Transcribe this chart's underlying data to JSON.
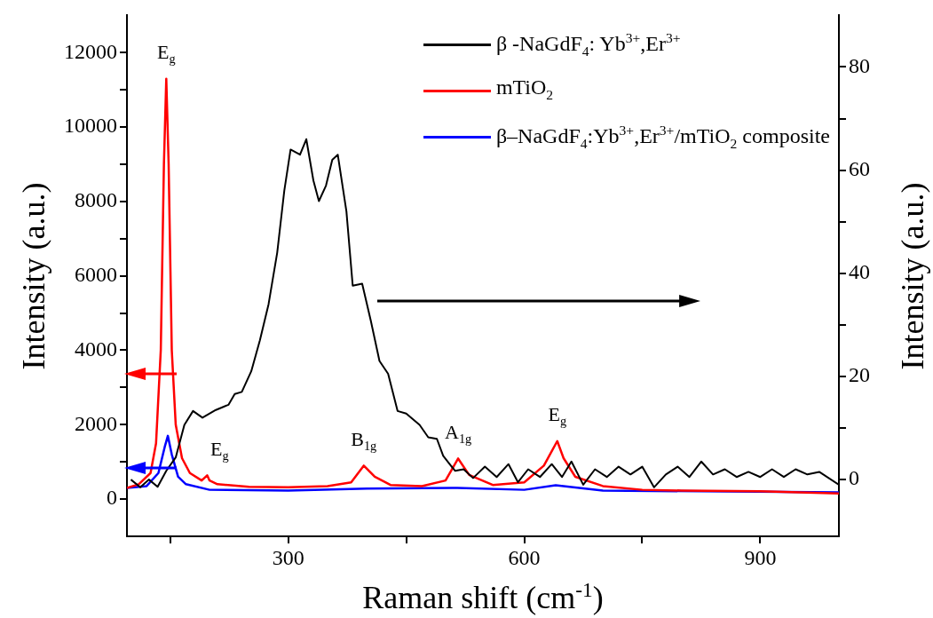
{
  "chart_data": {
    "type": "line",
    "xlabel": "Raman shift (cm$^{-1}$)",
    "ylabel": "Intensity (a.u.)",
    "y2label": "Intensity (a.u.)",
    "xlim": [
      95,
      1000
    ],
    "xticks": [
      {
        "value": 150,
        "label": null
      },
      300,
      {
        "value": 450,
        "label": null
      },
      600,
      {
        "value": 750,
        "label": null
      },
      900
    ],
    "ylim": [
      -1000,
      13000
    ],
    "yticks": [
      0,
      {
        "value": 1000,
        "label": null
      },
      2000,
      {
        "value": 3000,
        "label": null
      },
      4000,
      {
        "value": 5000,
        "label": null
      },
      6000,
      {
        "value": 7000,
        "label": null
      },
      8000,
      {
        "value": 9000,
        "label": null
      },
      10000,
      {
        "value": 11000,
        "label": null
      },
      12000
    ],
    "y2lim": [
      -11,
      90
    ],
    "y2ticks": [
      0,
      {
        "value": 10,
        "label": null
      },
      20,
      {
        "value": 30,
        "label": null
      },
      40,
      {
        "value": 50,
        "label": null
      },
      60,
      {
        "value": 70,
        "label": null
      },
      80
    ],
    "legend": "top right",
    "grid": false,
    "marker": "none",
    "line_style": "solid",
    "series": [
      {
        "name": "β -NaGdF$_{4}$: Yb$^{3+}$,Er$^{3+}$",
        "color": "#000000",
        "axis": "y2",
        "x": [
          100,
          112,
          123,
          134,
          145,
          157,
          168,
          179,
          191,
          208,
          224,
          232,
          241,
          253,
          264,
          275,
          286,
          295,
          303,
          315,
          323,
          332,
          339,
          348,
          356,
          363,
          374,
          382,
          394,
          405,
          416,
          427,
          439,
          450,
          467,
          478,
          489,
          497,
          512,
          523,
          535,
          550,
          565,
          580,
          592,
          605,
          620,
          635,
          648,
          660,
          675,
          690,
          705,
          720,
          735,
          750,
          765,
          780,
          795,
          810,
          825,
          840,
          855,
          870,
          885,
          900,
          915,
          930,
          945,
          960,
          975,
          1000
        ],
        "values": [
          0,
          -1.5,
          0,
          -1.4,
          1.7,
          4.3,
          10.6,
          13.3,
          12,
          13.5,
          14.5,
          16.6,
          17,
          21,
          27,
          34,
          44,
          56,
          64,
          63,
          66,
          58,
          54,
          57,
          62,
          63,
          52,
          37.6,
          38,
          30.8,
          23,
          20.5,
          13.3,
          12.8,
          10.6,
          8.2,
          7.9,
          4.6,
          1.7,
          2,
          0.3,
          2.5,
          0.5,
          3,
          -0.5,
          2,
          0.5,
          3,
          0.5,
          3.5,
          -1,
          2,
          0.5,
          2.5,
          1,
          2.5,
          -1.5,
          1,
          2.5,
          0.5,
          3.5,
          1,
          2,
          0.5,
          1.5,
          0.5,
          2,
          0.5,
          2,
          1,
          1.5,
          -1
        ]
      },
      {
        "name": "mTiO$_{2}$",
        "color": "#ff0000",
        "x": [
          95,
          110,
          125,
          132,
          138,
          142,
          145,
          148,
          152,
          157,
          165,
          175,
          190,
          197,
          200,
          210,
          250,
          300,
          350,
          380,
          396,
          410,
          430,
          470,
          500,
          516,
          530,
          560,
          600,
          625,
          642,
          650,
          665,
          700,
          750,
          800,
          900,
          1000
        ],
        "values": [
          300,
          400,
          700,
          1500,
          4000,
          9000,
          11300,
          9000,
          4000,
          2000,
          1100,
          700,
          500,
          640,
          500,
          400,
          330,
          320,
          350,
          450,
          900,
          600,
          380,
          350,
          500,
          1090,
          650,
          380,
          450,
          900,
          1560,
          1100,
          600,
          350,
          250,
          230,
          210,
          150
        ]
      },
      {
        "name": "β–NaGdF$_{4}$:Yb$^{3+}$,Er$^{3+}$/mTiO$_{2}$ composite",
        "color": "#0000ff",
        "x": [
          95,
          120,
          135,
          143,
          147,
          152,
          160,
          170,
          200,
          300,
          400,
          515,
          600,
          640,
          700,
          1000
        ],
        "values": [
          300,
          350,
          700,
          1400,
          1700,
          1200,
          600,
          400,
          250,
          230,
          280,
          300,
          250,
          370,
          230,
          180
        ]
      }
    ],
    "annotations": [
      {
        "text": "E$_{g}$",
        "x": 145,
        "y": 11300
      },
      {
        "text": "E$_{g}$",
        "x": 197,
        "y": 640
      },
      {
        "text": "B$_{1g}$",
        "x": 396,
        "y": 900
      },
      {
        "text": "A$_{1g}$",
        "x": 516,
        "y": 1090
      },
      {
        "text": "E$_{g}$",
        "x": 642,
        "y": 1560
      }
    ]
  }
}
